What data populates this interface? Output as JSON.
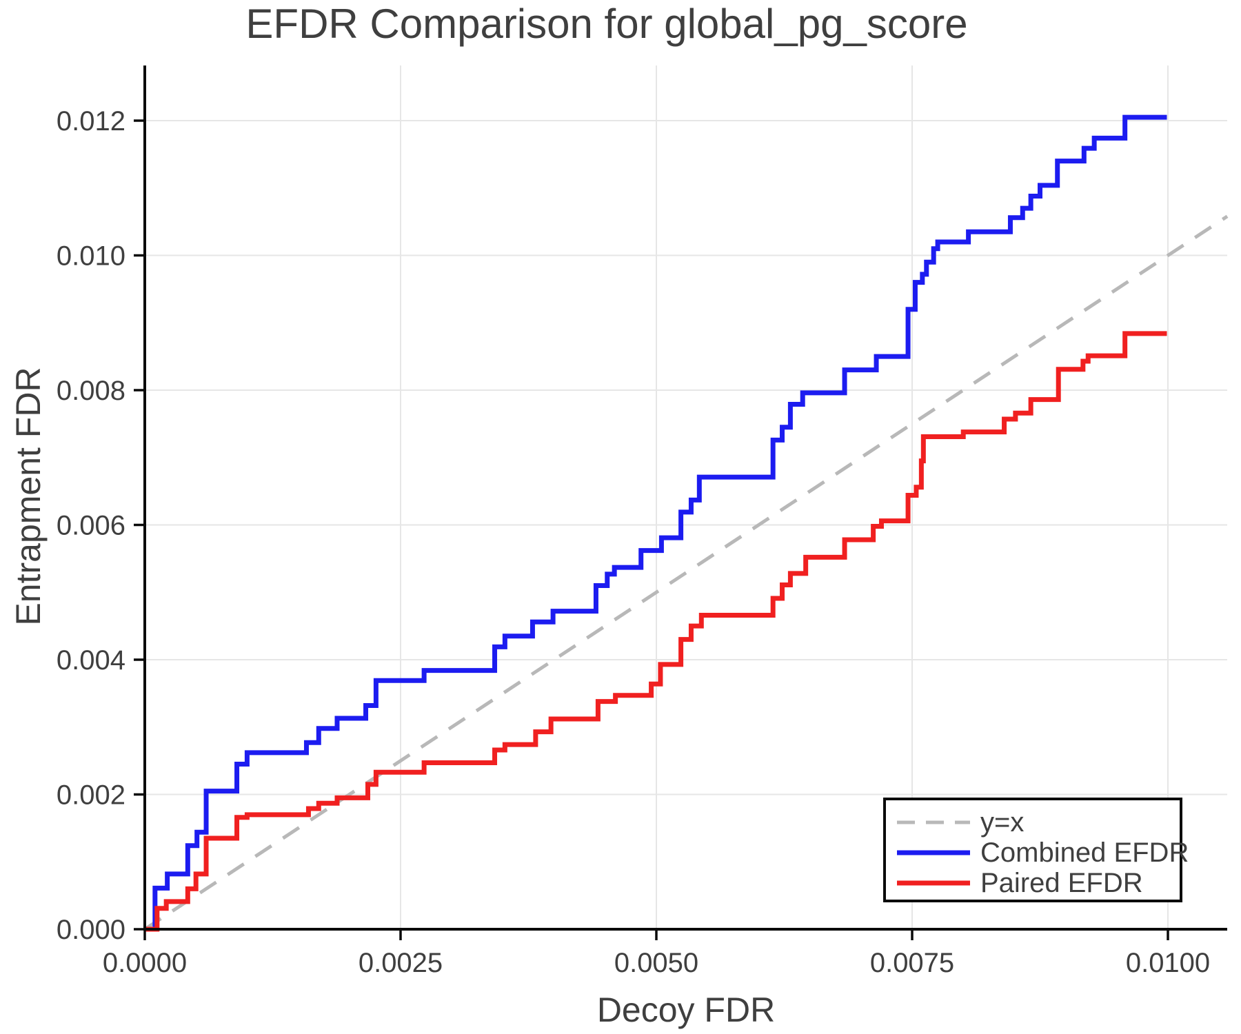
{
  "title": "EFDR Comparison for global_pg_score",
  "x_axis": {
    "label": "Decoy FDR",
    "tick_labels": [
      "0.0000",
      "0.0025",
      "0.0050",
      "0.0075",
      "0.0100"
    ],
    "tick_values": [
      0.0,
      0.0025,
      0.005,
      0.0075,
      0.01
    ]
  },
  "y_axis": {
    "label": "Entrapment FDR",
    "tick_labels": [
      "0.000",
      "0.002",
      "0.004",
      "0.006",
      "0.008",
      "0.010",
      "0.012"
    ],
    "tick_values": [
      0.0,
      0.002,
      0.004,
      0.006,
      0.008,
      0.01,
      0.012
    ]
  },
  "legend": {
    "items": [
      {
        "label": "y=x",
        "color": "#b8b8b8",
        "style": "dashed"
      },
      {
        "label": "Combined EFDR",
        "color": "#1c1cf0",
        "style": "solid"
      },
      {
        "label": "Paired EFDR",
        "color": "#f02020",
        "style": "solid"
      }
    ]
  },
  "colors": {
    "combined": "#1c1cf0",
    "paired": "#f02020",
    "identity": "#b8b8b8",
    "grid": "#e6e6e6",
    "spine": "#0a0a0a",
    "text": "#3f3f3f"
  },
  "chart_data": {
    "type": "line",
    "title": "EFDR Comparison for global_pg_score",
    "xlabel": "Decoy FDR",
    "ylabel": "Entrapment FDR",
    "xlim": [
      0.0,
      0.01058
    ],
    "ylim": [
      0.0,
      0.01282
    ],
    "grid": true,
    "legend_position": "lower right",
    "series": [
      {
        "name": "y=x",
        "style": "dashed",
        "color": "#b8b8b8",
        "step": false,
        "points": [
          [
            0.0,
            0.0
          ],
          [
            0.01058,
            0.01058
          ]
        ]
      },
      {
        "name": "Combined EFDR",
        "style": "solid",
        "color": "#1c1cf0",
        "step": "post",
        "points": [
          [
            0.0,
            0.0
          ],
          [
            0.0001,
            0.00061
          ],
          [
            0.00022,
            0.00082
          ],
          [
            0.00042,
            0.00124
          ],
          [
            0.00051,
            0.00144
          ],
          [
            0.0006,
            0.00205
          ],
          [
            0.0009,
            0.00245
          ],
          [
            0.001,
            0.00262
          ],
          [
            0.00158,
            0.00277
          ],
          [
            0.0017,
            0.00298
          ],
          [
            0.00188,
            0.00313
          ],
          [
            0.00216,
            0.00332
          ],
          [
            0.00226,
            0.00369
          ],
          [
            0.00273,
            0.00384
          ],
          [
            0.00342,
            0.00419
          ],
          [
            0.00352,
            0.00435
          ],
          [
            0.00379,
            0.00456
          ],
          [
            0.00399,
            0.00472
          ],
          [
            0.00441,
            0.0051
          ],
          [
            0.00452,
            0.00527
          ],
          [
            0.00459,
            0.00537
          ],
          [
            0.00485,
            0.00562
          ],
          [
            0.00505,
            0.00581
          ],
          [
            0.00524,
            0.00619
          ],
          [
            0.00534,
            0.00637
          ],
          [
            0.00542,
            0.00671
          ],
          [
            0.00614,
            0.00726
          ],
          [
            0.00623,
            0.00745
          ],
          [
            0.00631,
            0.00779
          ],
          [
            0.00643,
            0.00796
          ],
          [
            0.00684,
            0.0083
          ],
          [
            0.00715,
            0.0085
          ],
          [
            0.00746,
            0.0092
          ],
          [
            0.00753,
            0.0096
          ],
          [
            0.0076,
            0.00972
          ],
          [
            0.00764,
            0.0099
          ],
          [
            0.00771,
            0.0101
          ],
          [
            0.00775,
            0.0102
          ],
          [
            0.00805,
            0.01035
          ],
          [
            0.00846,
            0.01056
          ],
          [
            0.00858,
            0.0107
          ],
          [
            0.00866,
            0.01088
          ],
          [
            0.00875,
            0.01104
          ],
          [
            0.00892,
            0.0114
          ],
          [
            0.00918,
            0.01159
          ],
          [
            0.00928,
            0.01174
          ],
          [
            0.00958,
            0.01205
          ],
          [
            0.00999,
            0.01205
          ]
        ]
      },
      {
        "name": "Paired EFDR",
        "style": "solid",
        "color": "#f02020",
        "step": "post",
        "points": [
          [
            0.0,
            0.0
          ],
          [
            0.00012,
            0.00031
          ],
          [
            0.00021,
            0.00041
          ],
          [
            0.00042,
            0.0006
          ],
          [
            0.0005,
            0.00082
          ],
          [
            0.0006,
            0.00135
          ],
          [
            0.0009,
            0.00166
          ],
          [
            0.001,
            0.0017
          ],
          [
            0.0016,
            0.00179
          ],
          [
            0.0017,
            0.00187
          ],
          [
            0.00188,
            0.00195
          ],
          [
            0.00218,
            0.00215
          ],
          [
            0.00226,
            0.00233
          ],
          [
            0.00273,
            0.00247
          ],
          [
            0.00342,
            0.00266
          ],
          [
            0.00352,
            0.00274
          ],
          [
            0.00382,
            0.00293
          ],
          [
            0.00397,
            0.00312
          ],
          [
            0.00443,
            0.00338
          ],
          [
            0.0046,
            0.00347
          ],
          [
            0.00495,
            0.00364
          ],
          [
            0.00504,
            0.00393
          ],
          [
            0.00524,
            0.0043
          ],
          [
            0.00534,
            0.0045
          ],
          [
            0.00544,
            0.00466
          ],
          [
            0.00614,
            0.00491
          ],
          [
            0.00623,
            0.00511
          ],
          [
            0.00631,
            0.00528
          ],
          [
            0.00646,
            0.00552
          ],
          [
            0.00684,
            0.00578
          ],
          [
            0.00712,
            0.00598
          ],
          [
            0.0072,
            0.00606
          ],
          [
            0.00746,
            0.00644
          ],
          [
            0.00754,
            0.00656
          ],
          [
            0.00759,
            0.00695
          ],
          [
            0.00761,
            0.00731
          ],
          [
            0.008,
            0.00738
          ],
          [
            0.0084,
            0.00757
          ],
          [
            0.00851,
            0.00766
          ],
          [
            0.00866,
            0.00786
          ],
          [
            0.00893,
            0.00831
          ],
          [
            0.00917,
            0.00843
          ],
          [
            0.00922,
            0.00851
          ],
          [
            0.00958,
            0.00884
          ],
          [
            0.00999,
            0.00884
          ]
        ]
      }
    ]
  }
}
